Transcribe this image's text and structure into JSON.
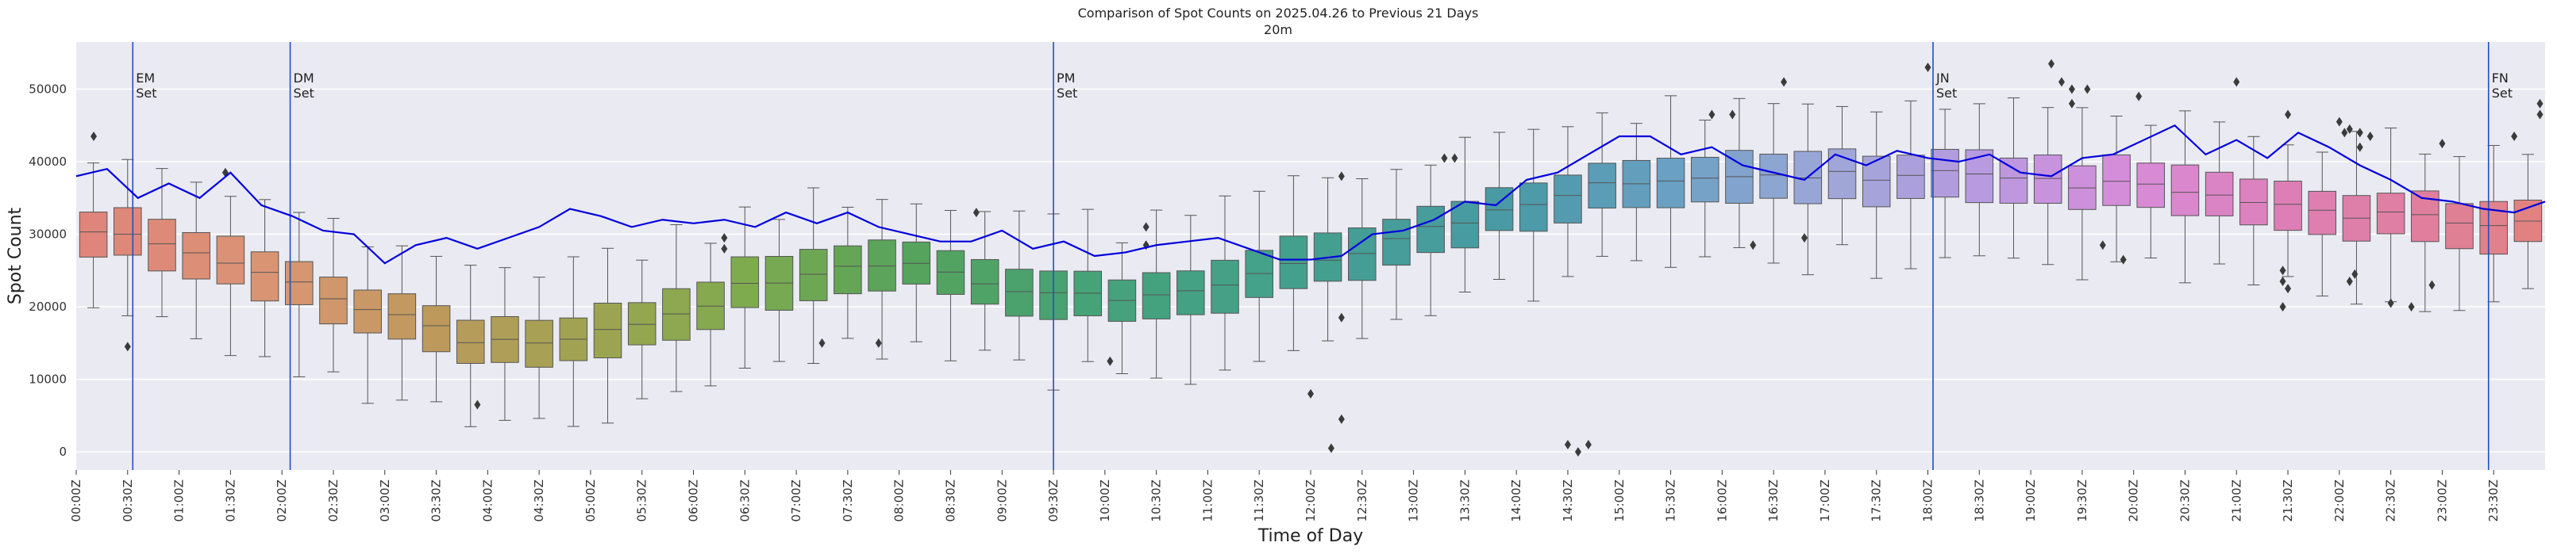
{
  "chart_data": {
    "type": "box",
    "title": "Comparison of Spot Counts on 2025.04.26 to Previous 21 Days",
    "subtitle": "20m",
    "xlabel": "Time of Day",
    "ylabel": "Spot Count",
    "ylim": [
      -2500,
      56500
    ],
    "yticks": [
      0,
      10000,
      20000,
      30000,
      40000,
      50000
    ],
    "grid": true,
    "background_color": "#eaeaf2",
    "line_color": "#0000dd",
    "xticks": [
      "00:00Z",
      "00:30Z",
      "01:00Z",
      "01:30Z",
      "02:00Z",
      "02:30Z",
      "03:00Z",
      "03:30Z",
      "04:00Z",
      "04:30Z",
      "05:00Z",
      "05:30Z",
      "06:00Z",
      "06:30Z",
      "07:00Z",
      "07:30Z",
      "08:00Z",
      "08:30Z",
      "09:00Z",
      "09:30Z",
      "10:00Z",
      "10:30Z",
      "11:00Z",
      "11:30Z",
      "12:00Z",
      "12:30Z",
      "13:00Z",
      "13:30Z",
      "14:00Z",
      "14:30Z",
      "15:00Z",
      "15:30Z",
      "16:00Z",
      "16:30Z",
      "17:00Z",
      "17:30Z",
      "18:00Z",
      "18:30Z",
      "19:00Z",
      "19:30Z",
      "20:00Z",
      "20:30Z",
      "21:00Z",
      "21:30Z",
      "22:00Z",
      "22:30Z",
      "23:00Z",
      "23:30Z"
    ],
    "box_series_median_anchors": {
      "x_hours": [
        0,
        0.5,
        1,
        1.5,
        2,
        2.5,
        3,
        3.5,
        4,
        4.5,
        5,
        5.5,
        6,
        6.5,
        7,
        7.5,
        8,
        8.5,
        9,
        9.5,
        10,
        10.5,
        11,
        11.5,
        12,
        12.5,
        13,
        13.5,
        14,
        14.5,
        15,
        15.5,
        16,
        16.5,
        17,
        17.5,
        18,
        18.5,
        19,
        19.5,
        20,
        20.5,
        21,
        21.5,
        22,
        22.5,
        23,
        23.5,
        24
      ],
      "median": [
        30500,
        30000,
        28500,
        26500,
        24000,
        21500,
        19000,
        17000,
        15000,
        14500,
        15500,
        17500,
        20000,
        22500,
        24500,
        26000,
        26500,
        25000,
        23000,
        22000,
        21500,
        21500,
        22500,
        24000,
        26000,
        27500,
        29500,
        32000,
        34000,
        35500,
        37000,
        38000,
        38500,
        38500,
        38000,
        38000,
        38500,
        38000,
        37500,
        37000,
        36500,
        36000,
        35000,
        34000,
        33000,
        32500,
        32000,
        31500,
        31500
      ]
    },
    "line_series_x_hours": [
      0,
      0.3,
      0.6,
      0.9,
      1.2,
      1.5,
      1.8,
      2.1,
      2.4,
      2.7,
      3.0,
      3.3,
      3.6,
      3.9,
      4.2,
      4.5,
      4.8,
      5.1,
      5.4,
      5.7,
      6.0,
      6.3,
      6.6,
      6.9,
      7.2,
      7.5,
      7.8,
      8.1,
      8.4,
      8.7,
      9.0,
      9.3,
      9.6,
      9.9,
      10.2,
      10.5,
      10.8,
      11.1,
      11.4,
      11.7,
      12.0,
      12.3,
      12.6,
      12.9,
      13.2,
      13.5,
      13.8,
      14.1,
      14.4,
      14.7,
      15.0,
      15.3,
      15.6,
      15.9,
      16.2,
      16.5,
      16.8,
      17.1,
      17.4,
      17.7,
      18.0,
      18.3,
      18.6,
      18.9,
      19.2,
      19.5,
      19.8,
      20.1,
      20.4,
      20.7,
      21.0,
      21.3,
      21.6,
      21.9,
      22.2,
      22.5,
      22.8,
      23.1,
      23.4,
      23.7,
      24.0
    ],
    "line_series_y": [
      38000,
      39000,
      35000,
      37000,
      35000,
      38500,
      34000,
      32500,
      30500,
      30000,
      26000,
      28500,
      29500,
      28000,
      29500,
      31000,
      33500,
      32500,
      31000,
      32000,
      31500,
      32000,
      31000,
      33000,
      31500,
      33000,
      31000,
      30000,
      29000,
      29000,
      30500,
      28000,
      29000,
      27000,
      27500,
      28500,
      29000,
      29500,
      28000,
      26500,
      26500,
      27000,
      30000,
      30500,
      32000,
      34500,
      34000,
      37500,
      38500,
      41000,
      43500,
      43500,
      41000,
      42000,
      39500,
      38500,
      37500,
      41000,
      39500,
      41500,
      40500,
      40000,
      41000,
      38500,
      38000,
      40500,
      41000,
      43000,
      45000,
      41000,
      43000,
      40500,
      44000,
      42000,
      39500,
      37500,
      35000,
      34500,
      33500,
      33000,
      34500
    ],
    "vertical_markers": [
      {
        "x_hours": 0.55,
        "label": "EM\nSet"
      },
      {
        "x_hours": 2.08,
        "label": "DM\nSet"
      },
      {
        "x_hours": 9.5,
        "label": "PM\nSet"
      },
      {
        "x_hours": 18.05,
        "label": "JN\nSet"
      },
      {
        "x_hours": 23.45,
        "label": "FN\nSet"
      }
    ],
    "outliers": [
      {
        "x_hours": 0.17,
        "y": 43500
      },
      {
        "x_hours": 0.5,
        "y": 14500
      },
      {
        "x_hours": 1.45,
        "y": 38500
      },
      {
        "x_hours": 3.9,
        "y": 6500
      },
      {
        "x_hours": 6.3,
        "y": 29500
      },
      {
        "x_hours": 6.3,
        "y": 28000
      },
      {
        "x_hours": 7.25,
        "y": 15000
      },
      {
        "x_hours": 7.8,
        "y": 15000
      },
      {
        "x_hours": 8.75,
        "y": 33000
      },
      {
        "x_hours": 10.05,
        "y": 12500
      },
      {
        "x_hours": 10.4,
        "y": 28500
      },
      {
        "x_hours": 10.4,
        "y": 31000
      },
      {
        "x_hours": 12.0,
        "y": 8000
      },
      {
        "x_hours": 12.2,
        "y": 500
      },
      {
        "x_hours": 12.3,
        "y": 4500
      },
      {
        "x_hours": 12.3,
        "y": 38000
      },
      {
        "x_hours": 12.3,
        "y": 18500
      },
      {
        "x_hours": 13.3,
        "y": 40500
      },
      {
        "x_hours": 13.4,
        "y": 40500
      },
      {
        "x_hours": 14.5,
        "y": 1000
      },
      {
        "x_hours": 14.6,
        "y": 0
      },
      {
        "x_hours": 14.7,
        "y": 1000
      },
      {
        "x_hours": 15.9,
        "y": 46500
      },
      {
        "x_hours": 16.1,
        "y": 46500
      },
      {
        "x_hours": 16.3,
        "y": 28500
      },
      {
        "x_hours": 16.6,
        "y": 51000
      },
      {
        "x_hours": 16.8,
        "y": 29500
      },
      {
        "x_hours": 18.0,
        "y": 53000
      },
      {
        "x_hours": 19.2,
        "y": 53500
      },
      {
        "x_hours": 19.3,
        "y": 51000
      },
      {
        "x_hours": 19.4,
        "y": 50000
      },
      {
        "x_hours": 19.4,
        "y": 48000
      },
      {
        "x_hours": 19.55,
        "y": 50000
      },
      {
        "x_hours": 19.7,
        "y": 28500
      },
      {
        "x_hours": 19.9,
        "y": 26500
      },
      {
        "x_hours": 20.05,
        "y": 49000
      },
      {
        "x_hours": 21.0,
        "y": 51000
      },
      {
        "x_hours": 21.5,
        "y": 46500
      },
      {
        "x_hours": 21.45,
        "y": 25000
      },
      {
        "x_hours": 21.45,
        "y": 23500
      },
      {
        "x_hours": 21.5,
        "y": 22500
      },
      {
        "x_hours": 21.45,
        "y": 20000
      },
      {
        "x_hours": 22.0,
        "y": 45500
      },
      {
        "x_hours": 22.05,
        "y": 44000
      },
      {
        "x_hours": 22.1,
        "y": 44500
      },
      {
        "x_hours": 22.2,
        "y": 44000
      },
      {
        "x_hours": 22.3,
        "y": 43500
      },
      {
        "x_hours": 22.2,
        "y": 42000
      },
      {
        "x_hours": 22.1,
        "y": 23500
      },
      {
        "x_hours": 22.15,
        "y": 24500
      },
      {
        "x_hours": 22.5,
        "y": 20500
      },
      {
        "x_hours": 22.7,
        "y": 20000
      },
      {
        "x_hours": 22.9,
        "y": 23000
      },
      {
        "x_hours": 23.0,
        "y": 42500
      },
      {
        "x_hours": 23.7,
        "y": 43500
      },
      {
        "x_hours": 23.95,
        "y": 46500
      },
      {
        "x_hours": 23.95,
        "y": 48000
      }
    ],
    "palette": [
      {
        "x_hours": 0,
        "color": "#e1837c"
      },
      {
        "x_hours": 2,
        "color": "#d89572"
      },
      {
        "x_hours": 3.5,
        "color": "#bd9a5c"
      },
      {
        "x_hours": 5,
        "color": "#9ea451"
      },
      {
        "x_hours": 6.5,
        "color": "#7fab4f"
      },
      {
        "x_hours": 8,
        "color": "#56a35a"
      },
      {
        "x_hours": 10,
        "color": "#45a27a"
      },
      {
        "x_hours": 12,
        "color": "#43a08f"
      },
      {
        "x_hours": 14,
        "color": "#4999a6"
      },
      {
        "x_hours": 15.5,
        "color": "#6aa0c4"
      },
      {
        "x_hours": 17,
        "color": "#9ea7d8"
      },
      {
        "x_hours": 18.5,
        "color": "#b79ae0"
      },
      {
        "x_hours": 20,
        "color": "#d88bd8"
      },
      {
        "x_hours": 21.5,
        "color": "#dd7fb6"
      },
      {
        "x_hours": 23,
        "color": "#e07f9a"
      },
      {
        "x_hours": 24,
        "color": "#e1837c"
      }
    ]
  }
}
